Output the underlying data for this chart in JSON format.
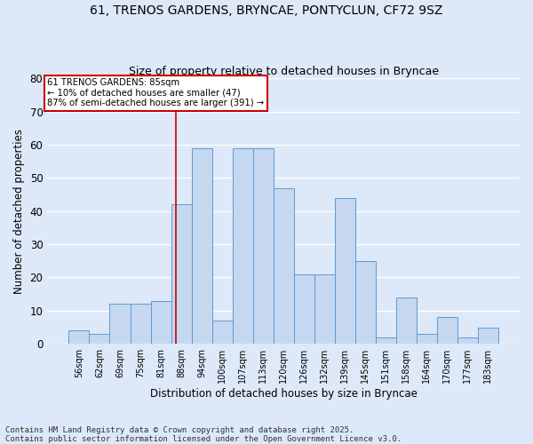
{
  "title1": "61, TRENOS GARDENS, BRYNCAE, PONTYCLUN, CF72 9SZ",
  "title2": "Size of property relative to detached houses in Bryncae",
  "xlabel": "Distribution of detached houses by size in Bryncae",
  "ylabel": "Number of detached properties",
  "footer": "Contains HM Land Registry data © Crown copyright and database right 2025.\nContains public sector information licensed under the Open Government Licence v3.0.",
  "categories": [
    "56sqm",
    "62sqm",
    "69sqm",
    "75sqm",
    "81sqm",
    "88sqm",
    "94sqm",
    "100sqm",
    "107sqm",
    "113sqm",
    "120sqm",
    "126sqm",
    "132sqm",
    "139sqm",
    "145sqm",
    "151sqm",
    "158sqm",
    "164sqm",
    "170sqm",
    "177sqm",
    "183sqm"
  ],
  "values": [
    4,
    3,
    12,
    12,
    13,
    42,
    59,
    7,
    59,
    59,
    47,
    21,
    21,
    44,
    25,
    2,
    14,
    3,
    8,
    2,
    5
  ],
  "bar_color": "#c5d8f0",
  "bar_edge_color": "#5b9bd5",
  "background_color": "#dde8f8",
  "grid_color": "#ffffff",
  "annotation_text": "61 TRENOS GARDENS: 85sqm\n← 10% of detached houses are smaller (47)\n87% of semi-detached houses are larger (391) →",
  "annotation_box_color": "#ffffff",
  "annotation_box_edge": "#cc0000",
  "vline_x": 4.75,
  "vline_color": "#cc0000",
  "ylim": [
    0,
    80
  ],
  "yticks": [
    0,
    10,
    20,
    30,
    40,
    50,
    60,
    70,
    80
  ],
  "fig_facecolor": "#dde8f8"
}
